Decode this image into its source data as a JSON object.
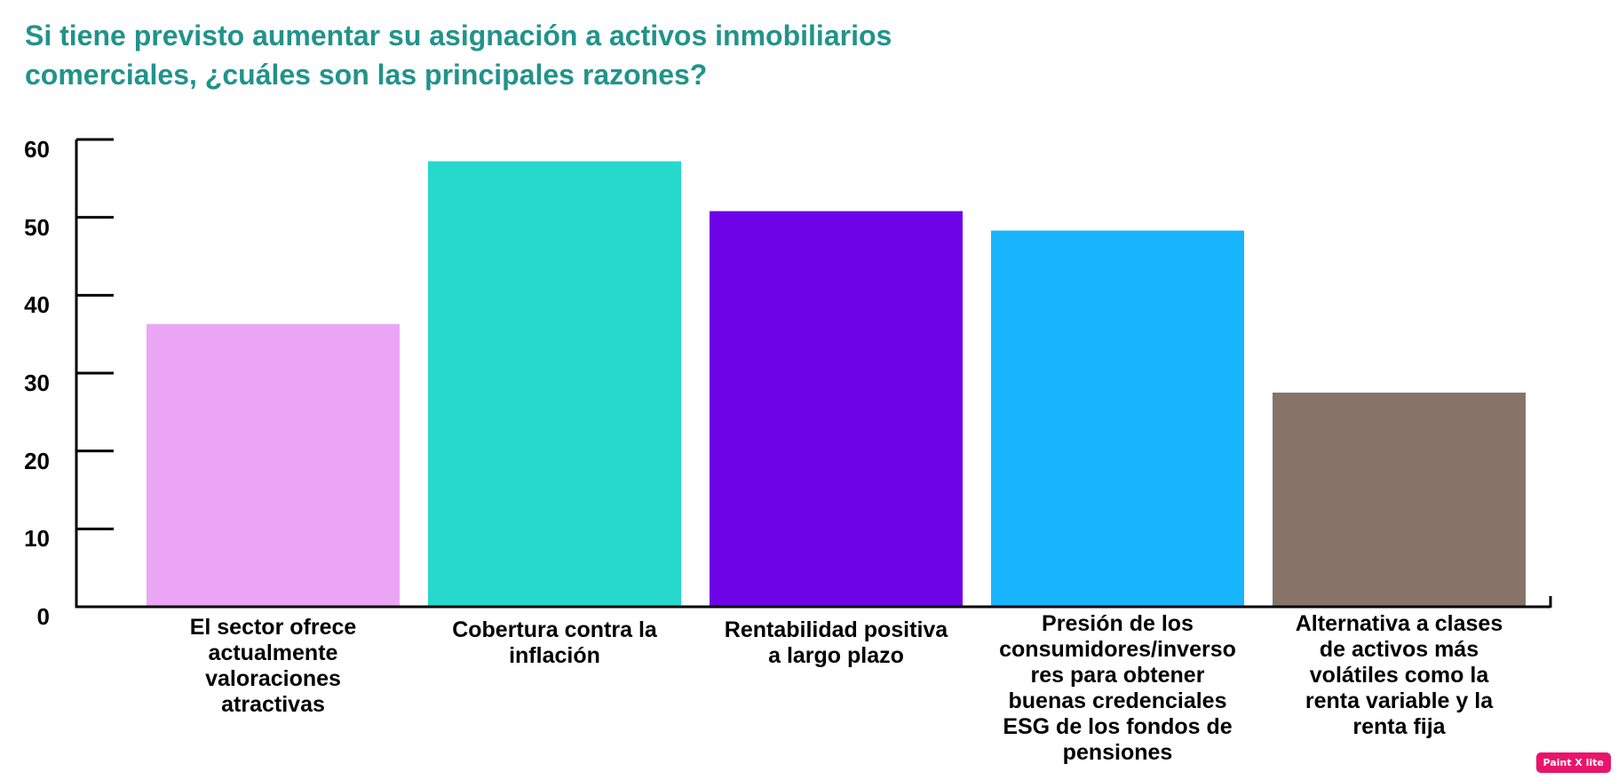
{
  "chart_data": {
    "type": "bar",
    "title_lines": [
      "Si tiene previsto aumentar su asignación a activos inmobiliarios",
      "comerciales, ¿cuáles son las principales razones?"
    ],
    "categories": [
      [
        "El sector ofrece",
        "actualmente",
        "valoraciones",
        "atractivas"
      ],
      [
        "Cobertura contra la",
        "inflación"
      ],
      [
        "Rentabilidad positiva",
        "a largo plazo"
      ],
      [
        "Presión de los",
        "consumidores/inverso",
        "res para obtener",
        "buenas credenciales",
        "ESG de los fondos de",
        "pensiones"
      ],
      [
        "Alternativa a clases",
        "de activos más",
        "volátiles como la",
        "renta variable y la",
        "renta fija"
      ]
    ],
    "values": [
      36.3,
      57.2,
      50.8,
      48.3,
      27.5
    ],
    "colors": [
      "#eaa6f5",
      "#26d9cc",
      "#6d03e6",
      "#18b4fd",
      "#877367"
    ],
    "ylim": [
      0,
      60
    ],
    "yticks": [
      "0",
      "10",
      "20",
      "30",
      "40",
      "50",
      "60"
    ],
    "grid": false,
    "legend": "none"
  },
  "watermark": {
    "label": "Paint X lite"
  }
}
